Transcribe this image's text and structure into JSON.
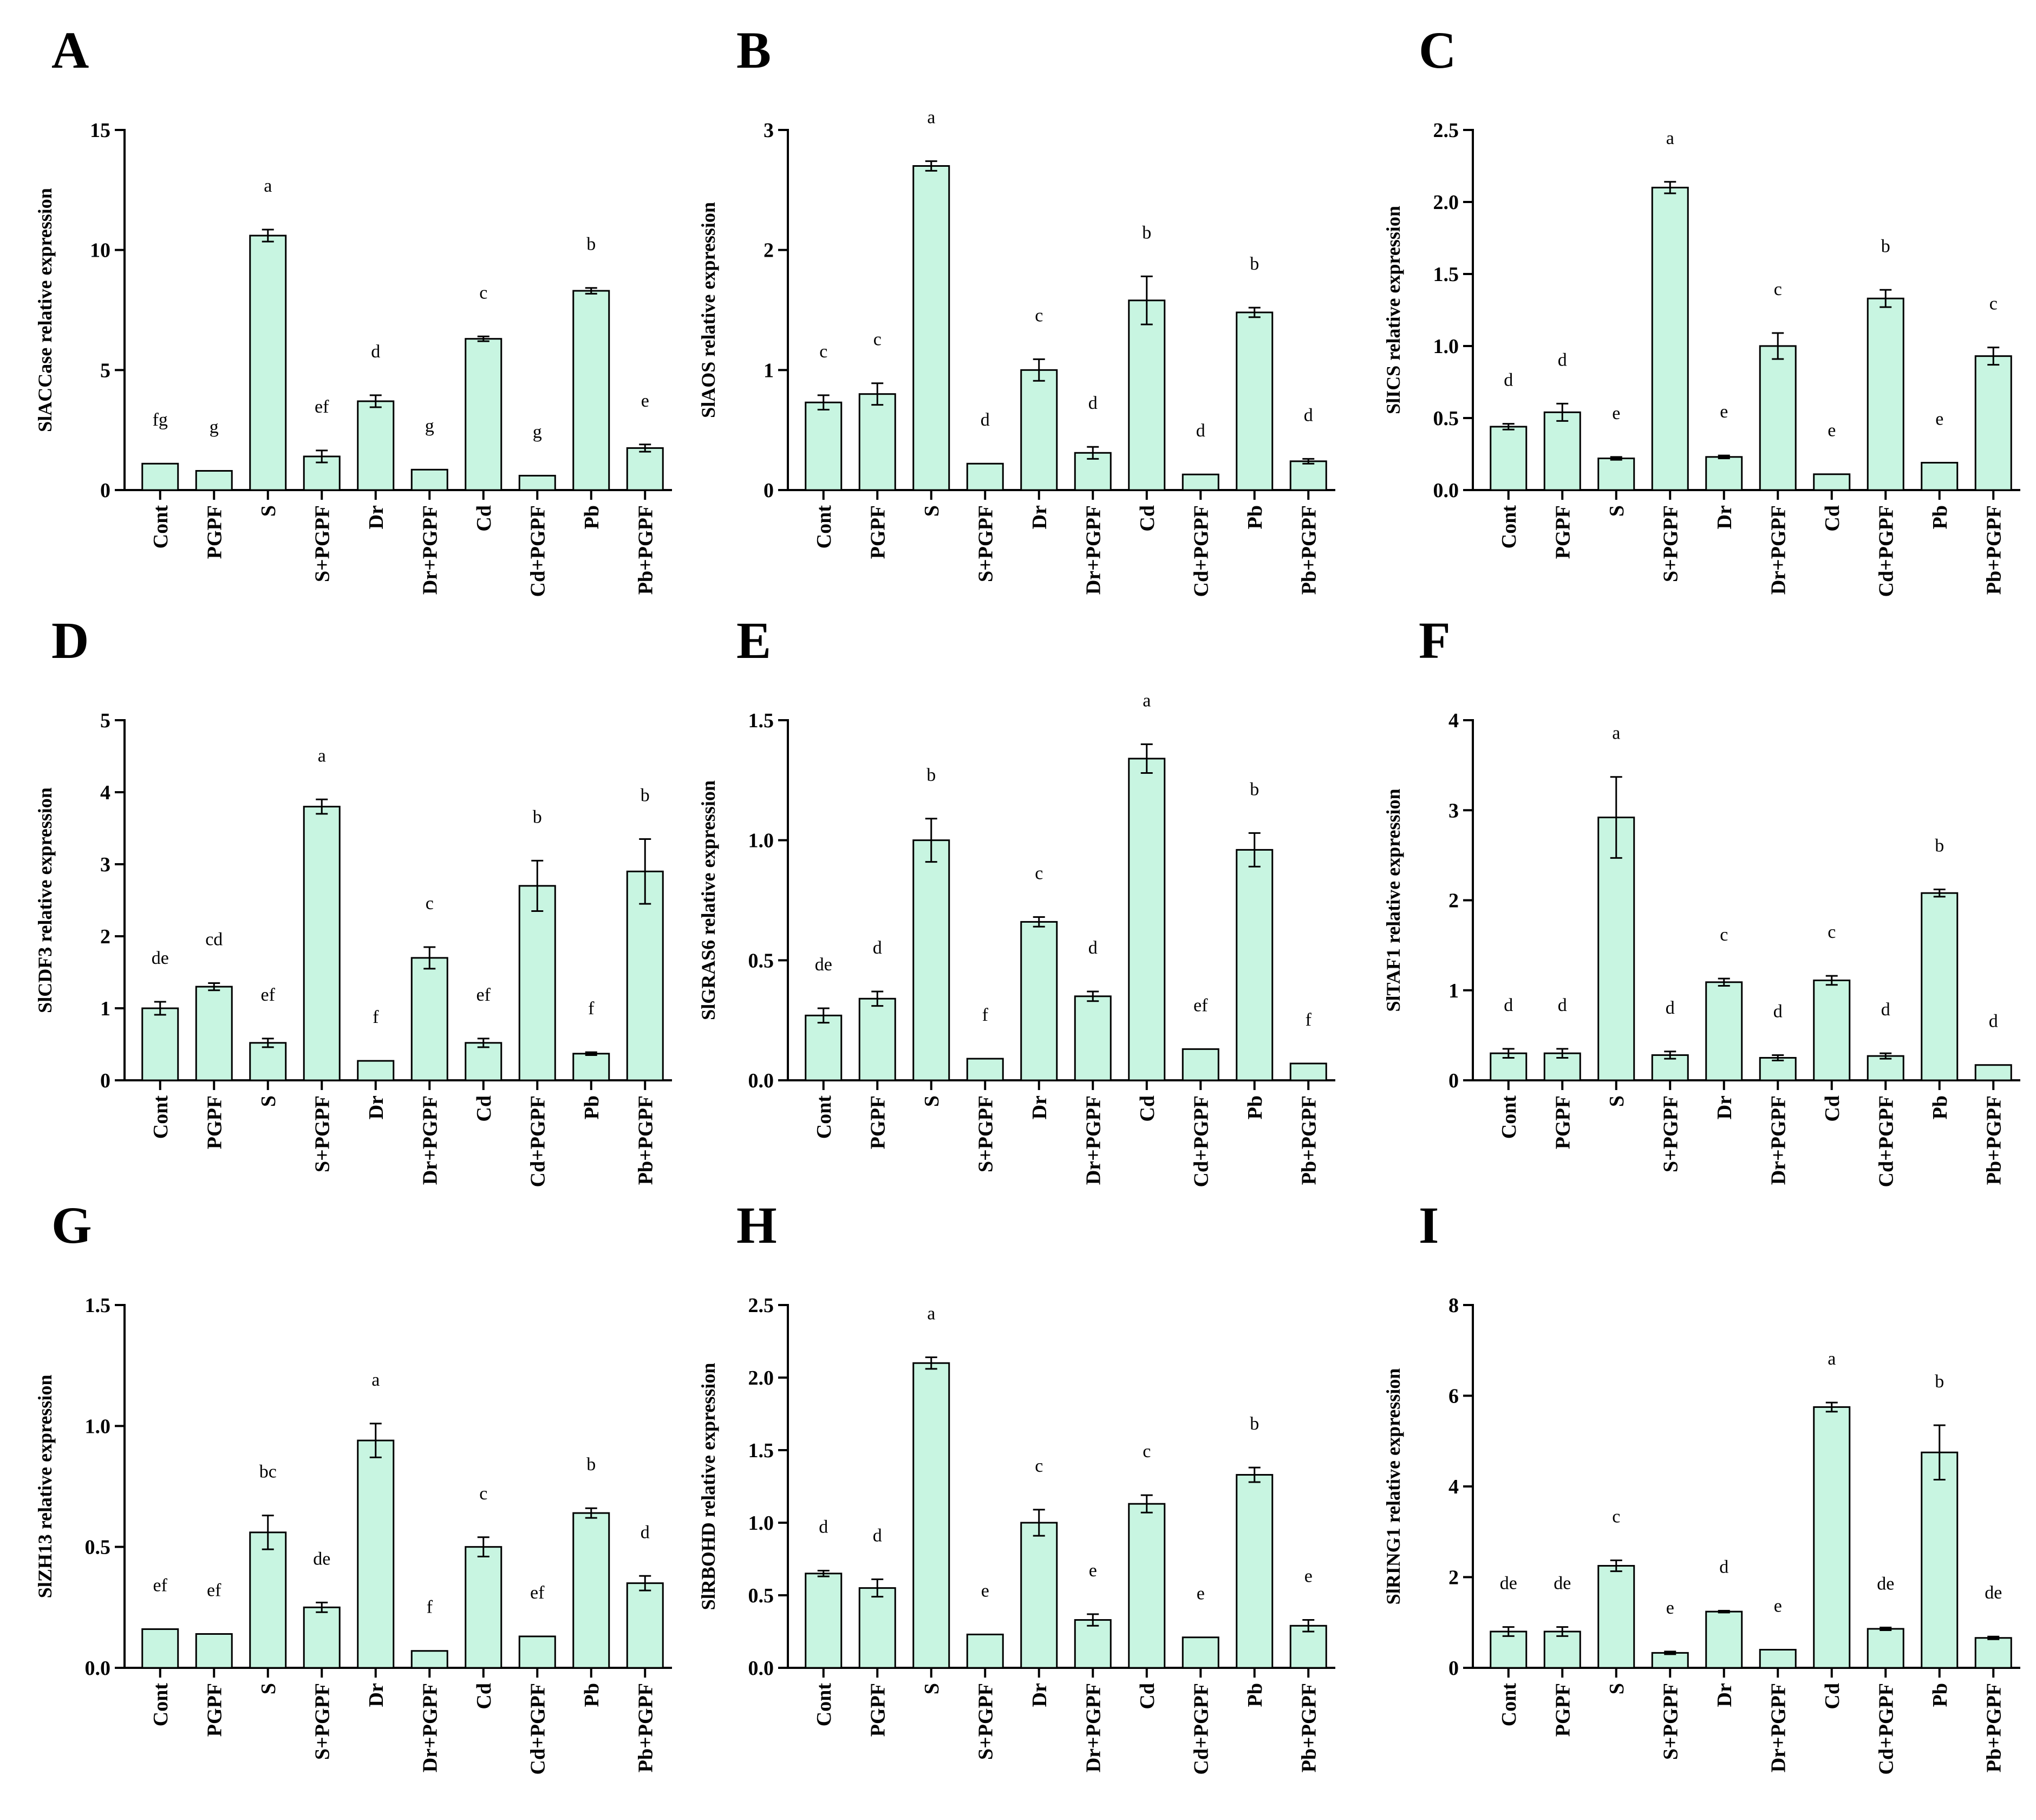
{
  "colors": {
    "bar_fill": "#c8f5e1",
    "bar_stroke": "#000000",
    "axis": "#000000"
  },
  "chart_data": [
    {
      "panel": "A",
      "type": "bar",
      "ylabel": "SlACCase relative expression",
      "ylim": [
        0,
        15
      ],
      "yticks": [
        "0",
        "5",
        "10",
        "15"
      ],
      "categories": [
        "Cont",
        "PGPF",
        "S",
        "S+PGPF",
        "Dr",
        "Dr+PGPF",
        "Cd",
        "Cd+PGPF",
        "Pb",
        "Pb+PGPF"
      ],
      "values": [
        1.1,
        0.8,
        10.6,
        1.4,
        3.7,
        0.85,
        6.3,
        0.6,
        8.3,
        1.75
      ],
      "errors": [
        0,
        0,
        0.25,
        0.25,
        0.25,
        0,
        0.1,
        0,
        0.12,
        0.15
      ],
      "significance": [
        "fg",
        "g",
        "a",
        "ef",
        "d",
        "g",
        "c",
        "g",
        "b",
        "e"
      ]
    },
    {
      "panel": "B",
      "type": "bar",
      "ylabel": "SlAOS relative expression",
      "ylim": [
        0,
        3
      ],
      "yticks": [
        "0",
        "1",
        "2",
        "3"
      ],
      "categories": [
        "Cont",
        "PGPF",
        "S",
        "S+PGPF",
        "Dr",
        "Dr+PGPF",
        "Cd",
        "Cd+PGPF",
        "Pb",
        "Pb+PGPF"
      ],
      "values": [
        0.73,
        0.8,
        2.7,
        0.22,
        1.0,
        0.31,
        1.58,
        0.13,
        1.48,
        0.24
      ],
      "errors": [
        0.06,
        0.09,
        0.04,
        0,
        0.09,
        0.05,
        0.2,
        0,
        0.04,
        0.02
      ],
      "significance": [
        "c",
        "c",
        "a",
        "d",
        "c",
        "d",
        "b",
        "d",
        "b",
        "d"
      ]
    },
    {
      "panel": "C",
      "type": "bar",
      "ylabel": "SlICS relative expression",
      "ylim": [
        0,
        2.5
      ],
      "yticks": [
        "0.0",
        "0.5",
        "1.0",
        "1.5",
        "2.0",
        "2.5"
      ],
      "categories": [
        "Cont",
        "PGPF",
        "S",
        "S+PGPF",
        "Dr",
        "Dr+PGPF",
        "Cd",
        "Cd+PGPF",
        "Pb",
        "Pb+PGPF"
      ],
      "values": [
        0.44,
        0.54,
        0.22,
        2.1,
        0.23,
        1.0,
        0.11,
        1.33,
        0.19,
        0.93
      ],
      "errors": [
        0.02,
        0.06,
        0.01,
        0.04,
        0.01,
        0.09,
        0,
        0.06,
        0,
        0.06
      ],
      "significance": [
        "d",
        "d",
        "e",
        "a",
        "e",
        "c",
        "e",
        "b",
        "e",
        "c"
      ]
    },
    {
      "panel": "D",
      "type": "bar",
      "ylabel": "SlCDF3 relative expression",
      "ylim": [
        0,
        5
      ],
      "yticks": [
        "0",
        "1",
        "2",
        "3",
        "4",
        "5"
      ],
      "categories": [
        "Cont",
        "PGPF",
        "S",
        "S+PGPF",
        "Dr",
        "Dr+PGPF",
        "Cd",
        "Cd+PGPF",
        "Pb",
        "Pb+PGPF"
      ],
      "values": [
        1.0,
        1.3,
        0.52,
        3.8,
        0.27,
        1.7,
        0.52,
        2.7,
        0.37,
        2.9
      ],
      "errors": [
        0.09,
        0.05,
        0.06,
        0.1,
        0,
        0.15,
        0.06,
        0.35,
        0.02,
        0.45
      ],
      "significance": [
        "de",
        "cd",
        "ef",
        "a",
        "f",
        "c",
        "ef",
        "b",
        "f",
        "b"
      ]
    },
    {
      "panel": "E",
      "type": "bar",
      "ylabel": "SlGRAS6 relative expression",
      "ylim": [
        0,
        1.5
      ],
      "yticks": [
        "0.0",
        "0.5",
        "1.0",
        "1.5"
      ],
      "categories": [
        "Cont",
        "PGPF",
        "S",
        "S+PGPF",
        "Dr",
        "Dr+PGPF",
        "Cd",
        "Cd+PGPF",
        "Pb",
        "Pb+PGPF"
      ],
      "values": [
        0.27,
        0.34,
        1.0,
        0.09,
        0.66,
        0.35,
        1.34,
        0.13,
        0.96,
        0.07
      ],
      "errors": [
        0.03,
        0.03,
        0.09,
        0,
        0.02,
        0.02,
        0.06,
        0,
        0.07,
        0
      ],
      "significance": [
        "de",
        "d",
        "b",
        "f",
        "c",
        "d",
        "a",
        "ef",
        "b",
        "f"
      ]
    },
    {
      "panel": "F",
      "type": "bar",
      "ylabel": "SlTAF1 relative expression",
      "ylim": [
        0,
        4
      ],
      "yticks": [
        "0",
        "1",
        "2",
        "3",
        "4"
      ],
      "categories": [
        "Cont",
        "PGPF",
        "S",
        "S+PGPF",
        "Dr",
        "Dr+PGPF",
        "Cd",
        "Cd+PGPF",
        "Pb",
        "Pb+PGPF"
      ],
      "values": [
        0.3,
        0.3,
        2.92,
        0.28,
        1.09,
        0.25,
        1.11,
        0.27,
        2.08,
        0.17
      ],
      "errors": [
        0.05,
        0.05,
        0.45,
        0.04,
        0.04,
        0.03,
        0.05,
        0.03,
        0.04,
        0
      ],
      "significance": [
        "d",
        "d",
        "a",
        "d",
        "c",
        "d",
        "c",
        "d",
        "b",
        "d"
      ]
    },
    {
      "panel": "G",
      "type": "bar",
      "ylabel": "SlZH13 relative expression",
      "ylim": [
        0,
        1.5
      ],
      "yticks": [
        "0.0",
        "0.5",
        "1.0",
        "1.5"
      ],
      "categories": [
        "Cont",
        "PGPF",
        "S",
        "S+PGPF",
        "Dr",
        "Dr+PGPF",
        "Cd",
        "Cd+PGPF",
        "Pb",
        "Pb+PGPF"
      ],
      "values": [
        0.16,
        0.14,
        0.56,
        0.25,
        0.94,
        0.07,
        0.5,
        0.13,
        0.64,
        0.35
      ],
      "errors": [
        0,
        0,
        0.07,
        0.02,
        0.07,
        0,
        0.04,
        0,
        0.02,
        0.03
      ],
      "significance": [
        "ef",
        "ef",
        "bc",
        "de",
        "a",
        "f",
        "c",
        "ef",
        "b",
        "d"
      ]
    },
    {
      "panel": "H",
      "type": "bar",
      "ylabel": "SlRBOHD relative expression",
      "ylim": [
        0,
        2.5
      ],
      "yticks": [
        "0.0",
        "0.5",
        "1.0",
        "1.5",
        "2.0",
        "2.5"
      ],
      "categories": [
        "Cont",
        "PGPF",
        "S",
        "S+PGPF",
        "Dr",
        "Dr+PGPF",
        "Cd",
        "Cd+PGPF",
        "Pb",
        "Pb+PGPF"
      ],
      "values": [
        0.65,
        0.55,
        2.1,
        0.23,
        1.0,
        0.33,
        1.13,
        0.21,
        1.33,
        0.29
      ],
      "errors": [
        0.02,
        0.06,
        0.04,
        0,
        0.09,
        0.04,
        0.06,
        0,
        0.05,
        0.04
      ],
      "significance": [
        "d",
        "d",
        "a",
        "e",
        "c",
        "e",
        "c",
        "e",
        "b",
        "e"
      ]
    },
    {
      "panel": "I",
      "type": "bar",
      "ylabel": "SlRING1 relative expression",
      "ylim": [
        0,
        8
      ],
      "yticks": [
        "0",
        "2",
        "4",
        "6",
        "8"
      ],
      "categories": [
        "Cont",
        "PGPF",
        "S",
        "S+PGPF",
        "Dr",
        "Dr+PGPF",
        "Cd",
        "Cd+PGPF",
        "Pb",
        "Pb+PGPF"
      ],
      "values": [
        0.8,
        0.8,
        2.25,
        0.33,
        1.24,
        0.4,
        5.75,
        0.86,
        4.75,
        0.66
      ],
      "errors": [
        0.1,
        0.1,
        0.12,
        0.03,
        0.02,
        0,
        0.1,
        0.03,
        0.6,
        0.03
      ],
      "significance": [
        "de",
        "de",
        "c",
        "e",
        "d",
        "e",
        "a",
        "de",
        "b",
        "de"
      ]
    }
  ]
}
